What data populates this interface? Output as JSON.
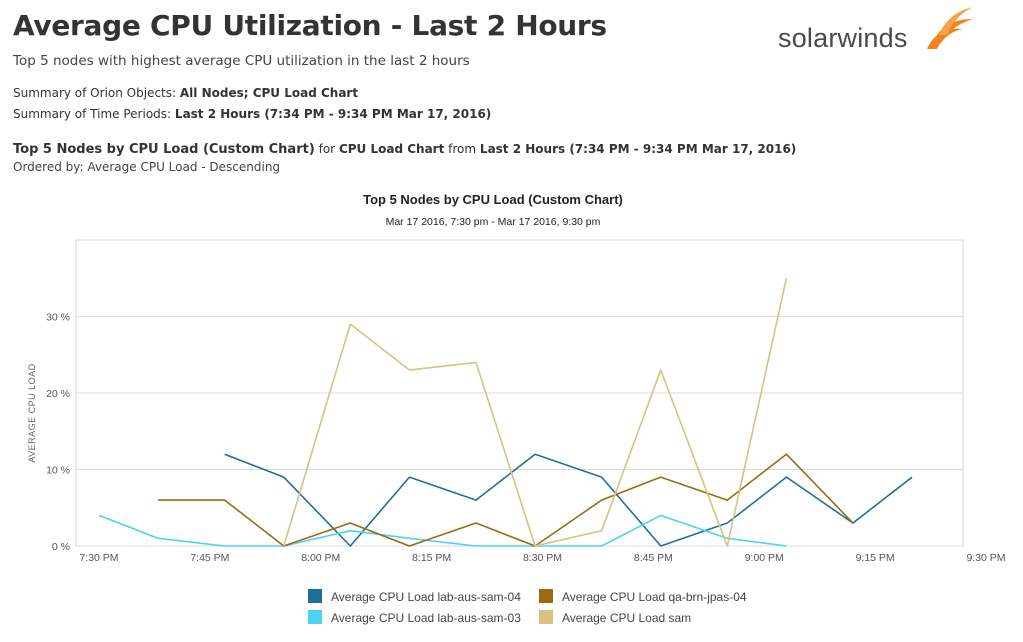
{
  "header": {
    "title": "Average CPU Utilization - Last 2 Hours",
    "subtitle": "Top 5 nodes with highest average CPU utilization in the last 2 hours",
    "logo_text": "solarwinds"
  },
  "summary": {
    "objects_label": "Summary of Orion Objects:",
    "objects_value": "All Nodes; CPU Load Chart",
    "periods_label": "Summary of Time Periods:",
    "periods_value": "Last 2 Hours (7:34 PM - 9:34 PM Mar 17, 2016)"
  },
  "section": {
    "title": "Top 5 Nodes by CPU Load (Custom Chart)",
    "for_word": "for",
    "chart_name": "CPU Load Chart",
    "from_word": "from",
    "period": "Last 2 Hours (7:34 PM - 9:34 PM Mar 17, 2016)",
    "ordered_by": "Ordered by: Average CPU Load - Descending"
  },
  "chart_data": {
    "type": "line",
    "title": "Top 5 Nodes by CPU Load (Custom Chart)",
    "subtitle": "Mar 17 2016, 7:30 pm - Mar 17 2016, 9:30 pm",
    "ylabel": "AVERAGE CPU LOAD",
    "xlabel": "",
    "ylim": [
      0,
      40
    ],
    "y_ticks": [
      0,
      10,
      20,
      30
    ],
    "y_tick_labels": [
      "0 %",
      "10 %",
      "20 %",
      "30 %"
    ],
    "x_ticks": [
      "7:30 PM",
      "7:45 PM",
      "8:00 PM",
      "8:15 PM",
      "8:30 PM",
      "8:45 PM",
      "9:00 PM",
      "9:15 PM",
      "9:30 PM"
    ],
    "x_range_minutes": [
      0,
      120
    ],
    "grid": true,
    "legend_position": "bottom",
    "series": [
      {
        "name": "Average CPU Load lab-aus-sam-04",
        "color": "#1f6f9c",
        "minutes": [
          8,
          17,
          25,
          34,
          42,
          51,
          59,
          68,
          76,
          85,
          93,
          102,
          110,
          119
        ],
        "values": [
          null,
          12,
          9,
          0,
          9,
          6,
          12,
          9,
          0,
          3,
          9,
          3,
          9,
          null
        ]
      },
      {
        "name": "Average CPU Load lab-aus-sam-03",
        "color": "#4dd3f0",
        "minutes": [
          0,
          8,
          17,
          25,
          34,
          42,
          51,
          59,
          68,
          76,
          85,
          93
        ],
        "values": [
          4,
          1,
          0,
          0,
          2,
          1,
          0,
          0,
          0,
          4,
          1,
          0
        ]
      },
      {
        "name": "Average CPU Load qa-brn-jpas-04",
        "color": "#9c6a10",
        "minutes": [
          8,
          17,
          25,
          34,
          42,
          51,
          59,
          68,
          76,
          85,
          93,
          102,
          110,
          119
        ],
        "values": [
          6,
          6,
          0,
          3,
          0,
          3,
          0,
          6,
          9,
          6,
          12,
          3,
          null,
          null
        ]
      },
      {
        "name": "Average CPU Load sam",
        "color": "#d8c27d",
        "minutes": [
          17,
          25,
          34,
          42,
          51,
          59,
          68,
          76,
          85,
          93
        ],
        "values": [
          null,
          0,
          29,
          23,
          24,
          0,
          2,
          23,
          0,
          35
        ]
      }
    ]
  }
}
